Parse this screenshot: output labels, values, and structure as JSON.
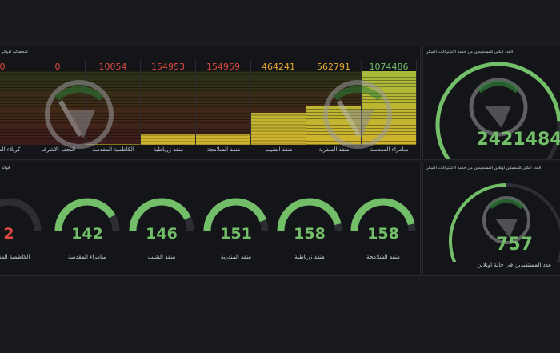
{
  "panels": {
    "bar_title": "لمحصائية لدوائر",
    "gauge_row_title": "قوائد",
    "total_title": "العدد الكلي للمستفيدين من خدمة الاشتراكات المبكر",
    "online_title": "العدد الكلي للمتصلين اونلاين المستفيدين من خدمة الاشتراكات المبكر"
  },
  "bar_gauge": {
    "max": 1074486,
    "items": [
      {
        "label": "كربلاء المقدسة",
        "value": "0",
        "num": 0,
        "color": "#e0493f"
      },
      {
        "label": "النجف الاشرف",
        "value": "0",
        "num": 0,
        "color": "#e0493f"
      },
      {
        "label": "الكاظمية المقدسة",
        "value": "10054",
        "num": 10054,
        "color": "#e0493f"
      },
      {
        "label": "منفذ زرباطية",
        "value": "154953",
        "num": 154953,
        "color": "#e0493f"
      },
      {
        "label": "منفذ الشلامجة",
        "value": "154959",
        "num": 154959,
        "color": "#e0493f"
      },
      {
        "label": "منفذ الشيب",
        "value": "464241",
        "num": 464241,
        "color": "#e6a92e"
      },
      {
        "label": "منفذ المنذرية",
        "value": "562791",
        "num": 562791,
        "color": "#e6a92e"
      },
      {
        "label": "سامراء المقدسة",
        "value": "1074486",
        "num": 1074486,
        "color": "#73bf69"
      }
    ]
  },
  "small_gauges": [
    {
      "label": "الكاظمية المقدسة",
      "value": "2",
      "num": 2,
      "color": "#e0493f"
    },
    {
      "label": "سامراء المقدسة",
      "value": "142",
      "num": 142,
      "color": "#73bf69"
    },
    {
      "label": "منفذ الشيب",
      "value": "146",
      "num": 146,
      "color": "#73bf69"
    },
    {
      "label": "منفذ المنذرية",
      "value": "151",
      "num": 151,
      "color": "#73bf69"
    },
    {
      "label": "منفذ زرباطية",
      "value": "158",
      "num": 158,
      "color": "#73bf69"
    },
    {
      "label": "منفذ الشلامجة",
      "value": "158",
      "num": 158,
      "color": "#73bf69"
    }
  ],
  "small_gauge_max": 170,
  "total_gauge": {
    "value": "2421484",
    "fraction": 0.82,
    "color": "#73bf69"
  },
  "online_gauge": {
    "value": "757",
    "fraction": 0.5,
    "color": "#73bf69",
    "label": "عدد المستفيدين في حالة اونلاين"
  },
  "colors": {
    "green": "#73bf69",
    "red": "#e0493f",
    "amber": "#e6a92e",
    "track": "#2c2e33"
  }
}
